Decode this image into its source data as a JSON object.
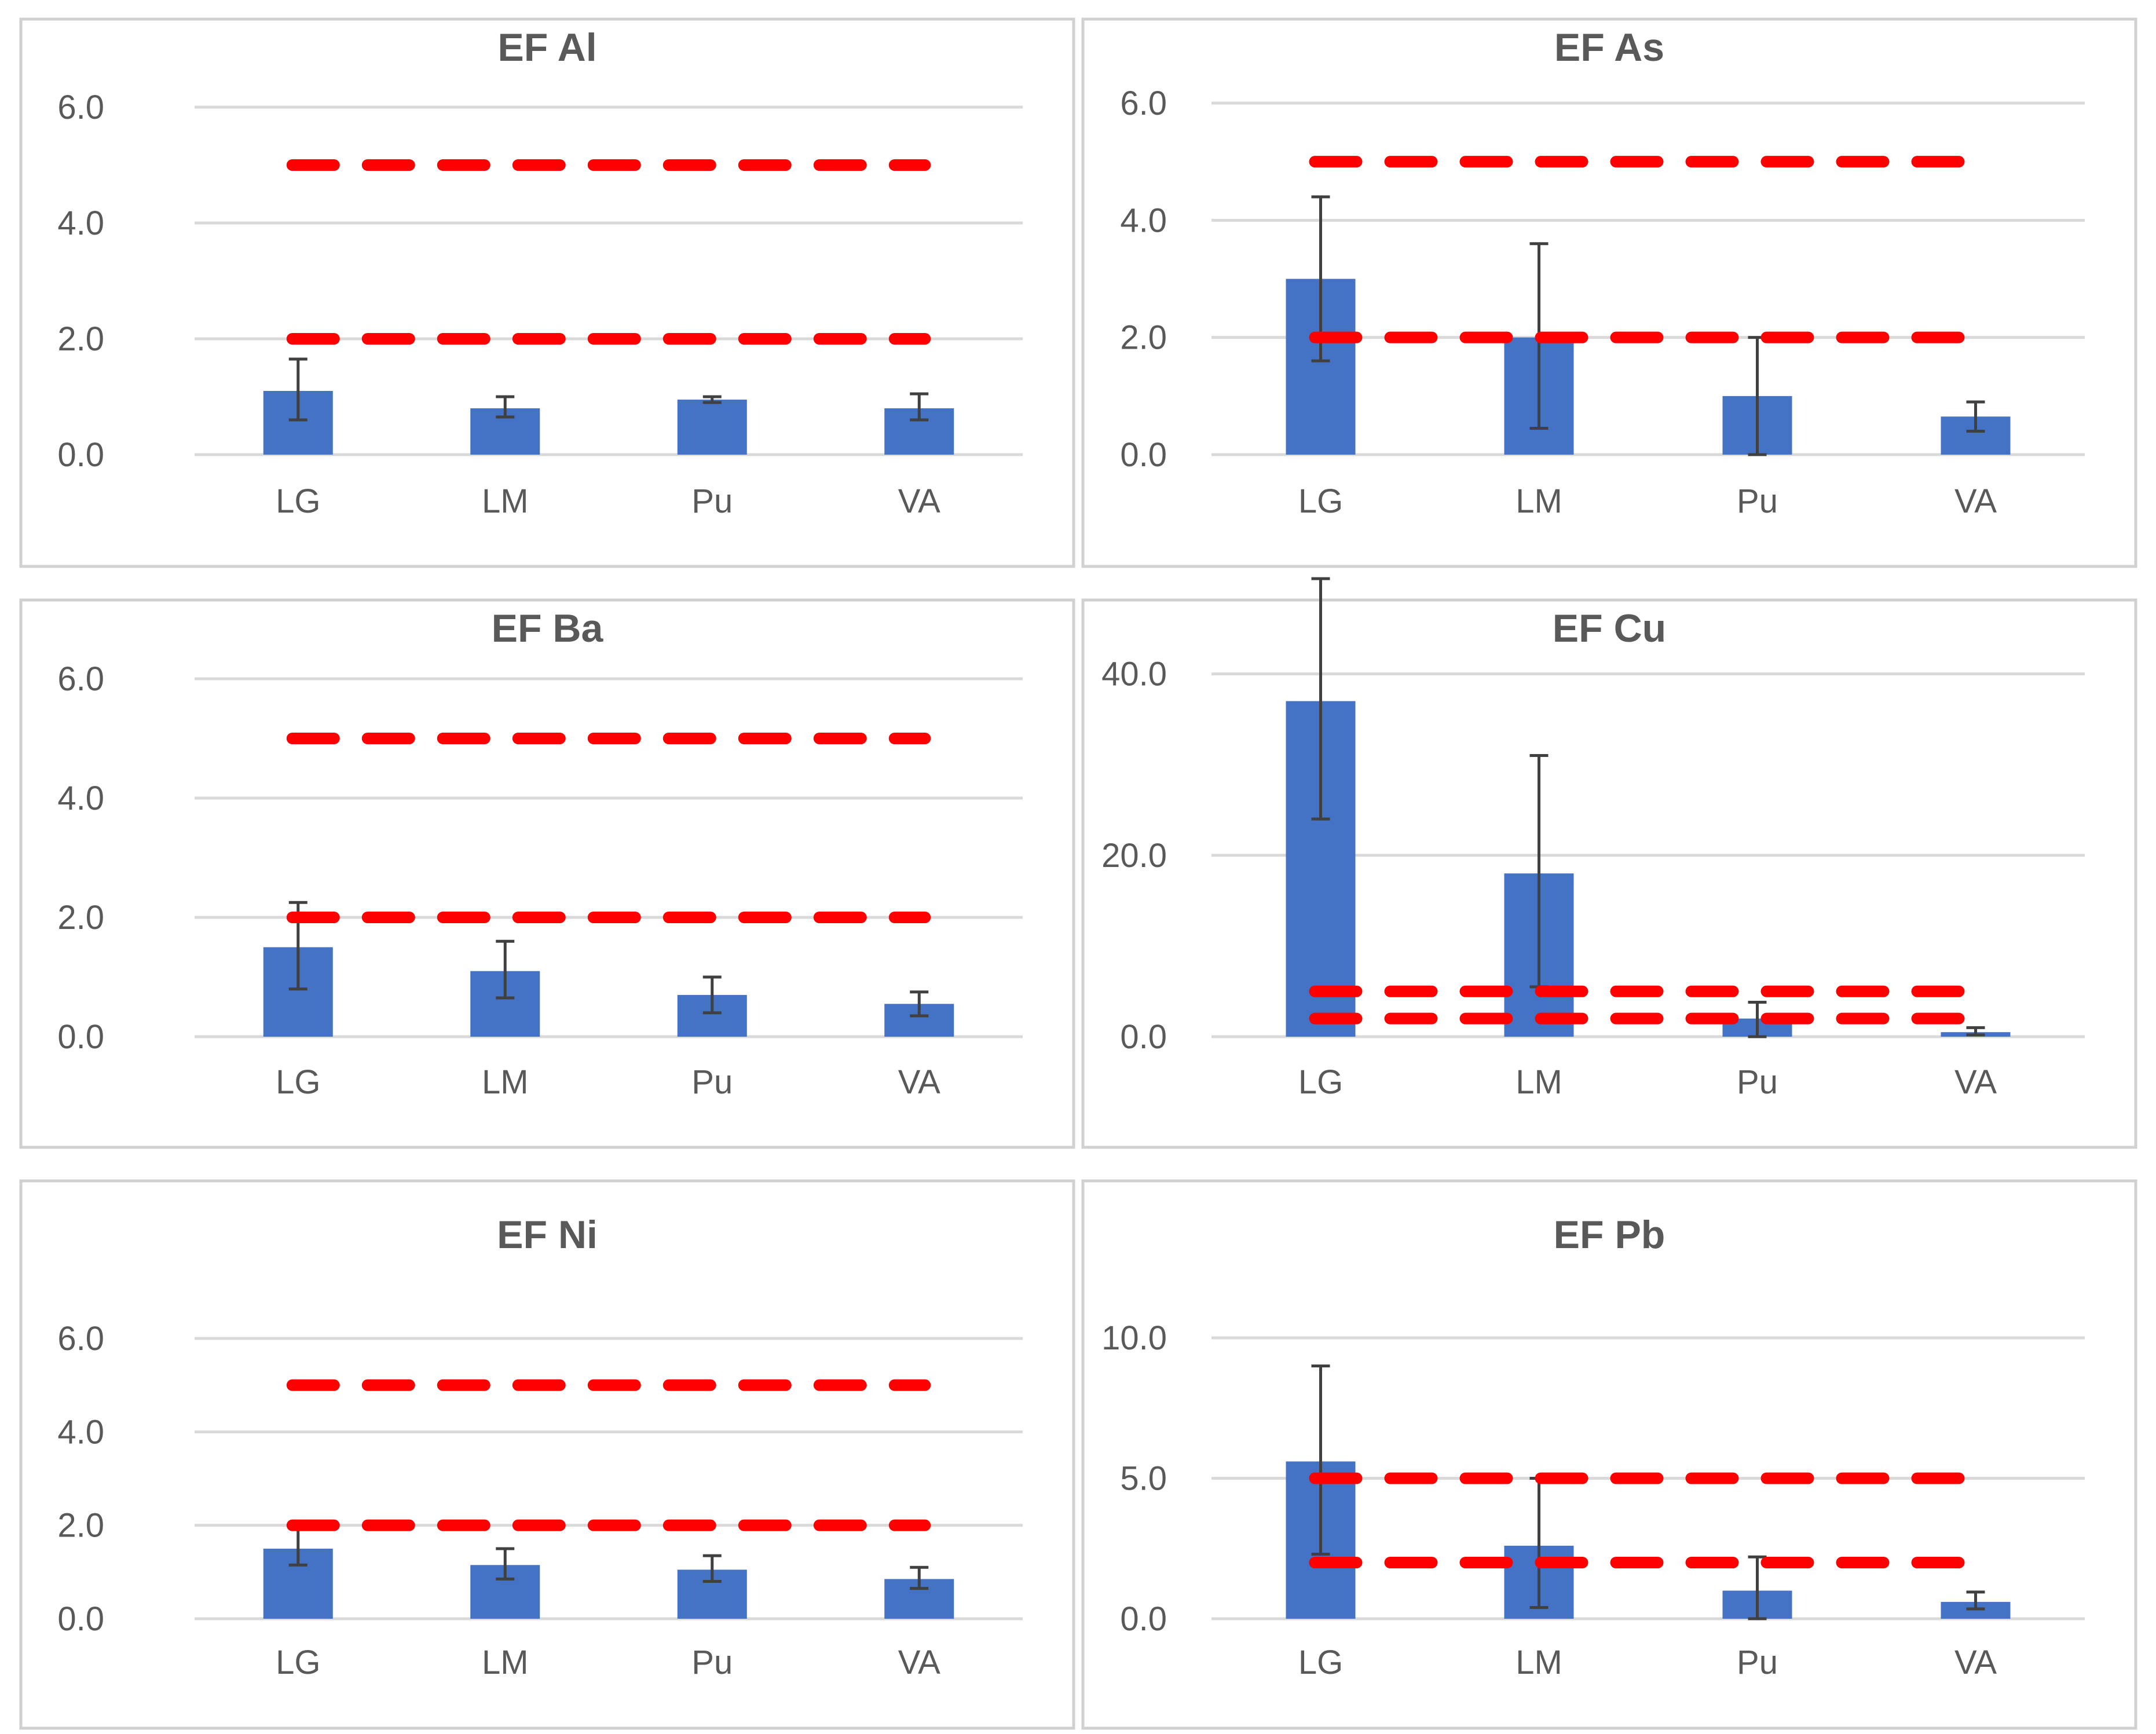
{
  "figure": {
    "layout": "3x2 grid of bar charts with error bars and dashed threshold lines"
  },
  "colors": {
    "bar": "#4472c4",
    "threshold": "#ff0000",
    "error_bar": "#404040",
    "grid": "#d9d9d9",
    "text": "#595959"
  },
  "chart_data": [
    {
      "type": "bar",
      "title": "EF Al",
      "categories": [
        "LG",
        "LM",
        "Pu",
        "VA"
      ],
      "values": [
        1.1,
        0.8,
        0.95,
        0.8
      ],
      "error_low": [
        0.6,
        0.65,
        0.9,
        0.6
      ],
      "error_high": [
        1.65,
        1.0,
        1.0,
        1.05
      ],
      "thresholds": [
        5.0,
        2.0
      ],
      "ylim": [
        0,
        6
      ],
      "yticks": [
        0,
        2,
        4,
        6
      ],
      "ytick_labels": [
        "0.0",
        "2.0",
        "4.0",
        "6.0"
      ],
      "xlabel": "",
      "ylabel": "",
      "grid": true
    },
    {
      "type": "bar",
      "title": "EF As",
      "categories": [
        "LG",
        "LM",
        "Pu",
        "VA"
      ],
      "values": [
        3.0,
        2.0,
        1.0,
        0.65
      ],
      "error_low": [
        1.6,
        0.45,
        0.0,
        0.4
      ],
      "error_high": [
        4.4,
        3.6,
        2.0,
        0.9
      ],
      "thresholds": [
        5.0,
        2.0
      ],
      "ylim": [
        0,
        6
      ],
      "yticks": [
        0,
        2,
        4,
        6
      ],
      "ytick_labels": [
        "0.0",
        "2.0",
        "4.0",
        "6.0"
      ],
      "xlabel": "",
      "ylabel": "",
      "grid": true
    },
    {
      "type": "bar",
      "title": "EF Ba",
      "categories": [
        "LG",
        "LM",
        "Pu",
        "VA"
      ],
      "values": [
        1.5,
        1.1,
        0.7,
        0.55
      ],
      "error_low": [
        0.8,
        0.65,
        0.4,
        0.35
      ],
      "error_high": [
        2.25,
        1.6,
        1.0,
        0.75
      ],
      "thresholds": [
        5.0,
        2.0
      ],
      "ylim": [
        0,
        6
      ],
      "yticks": [
        0,
        2,
        4,
        6
      ],
      "ytick_labels": [
        "0.0",
        "2.0",
        "4.0",
        "6.0"
      ],
      "xlabel": "",
      "ylabel": "",
      "grid": true
    },
    {
      "type": "bar",
      "title": "EF Cu",
      "categories": [
        "LG",
        "LM",
        "Pu",
        "VA"
      ],
      "values": [
        37.0,
        18.0,
        2.0,
        0.5
      ],
      "error_low": [
        24.0,
        5.5,
        0.0,
        0.2
      ],
      "error_high": [
        50.5,
        31.0,
        3.8,
        1.0
      ],
      "thresholds": [
        5.0,
        2.0
      ],
      "ylim": [
        0,
        50
      ],
      "yticks": [
        0,
        20,
        40
      ],
      "ytick_labels": [
        "0.0",
        "20.0",
        "40.0"
      ],
      "xlabel": "",
      "ylabel": "",
      "grid": true
    },
    {
      "type": "bar",
      "title": "EF Ni",
      "categories": [
        "LG",
        "LM",
        "Pu",
        "VA"
      ],
      "values": [
        1.5,
        1.15,
        1.05,
        0.85
      ],
      "error_low": [
        1.15,
        0.85,
        0.8,
        0.65
      ],
      "error_high": [
        1.95,
        1.5,
        1.35,
        1.1
      ],
      "thresholds": [
        5.0,
        2.0
      ],
      "ylim": [
        0,
        6
      ],
      "yticks": [
        0,
        2,
        4,
        6
      ],
      "ytick_labels": [
        "0.0",
        "2.0",
        "4.0",
        "6.0"
      ],
      "xlabel": "",
      "ylabel": "",
      "grid": true
    },
    {
      "type": "bar",
      "title": "EF Pb",
      "categories": [
        "LG",
        "LM",
        "Pu",
        "VA"
      ],
      "values": [
        5.6,
        2.6,
        1.0,
        0.6
      ],
      "error_low": [
        2.3,
        0.4,
        0.0,
        0.35
      ],
      "error_high": [
        9.0,
        5.0,
        2.2,
        0.95
      ],
      "thresholds": [
        5.0,
        2.0
      ],
      "ylim": [
        0,
        10
      ],
      "yticks": [
        0,
        5,
        10
      ],
      "ytick_labels": [
        "0.0",
        "5.0",
        "10.0"
      ],
      "xlabel": "",
      "ylabel": "",
      "grid": true
    }
  ]
}
